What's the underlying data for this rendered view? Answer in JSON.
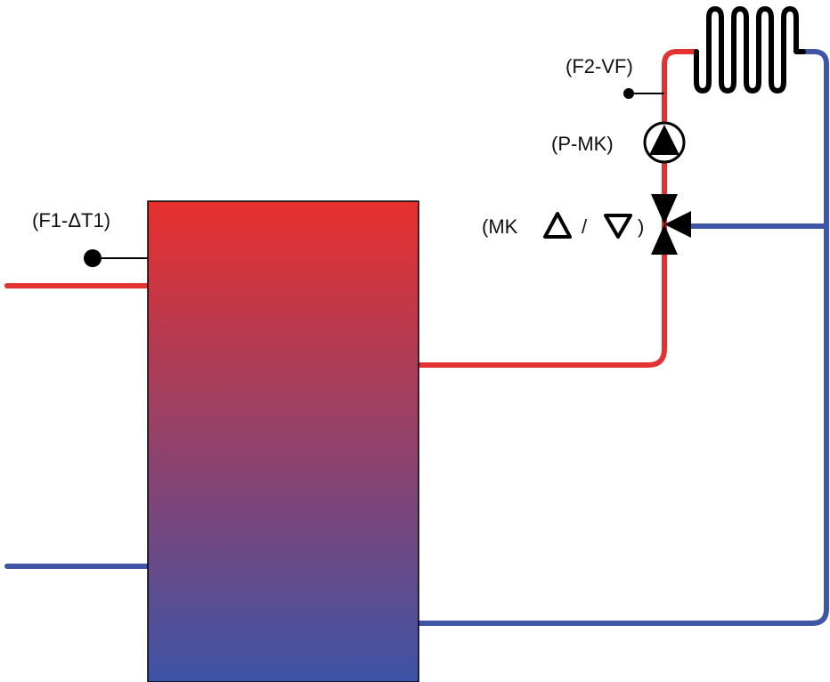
{
  "labels": {
    "sensor_f1": "(F1-ΔT1)",
    "sensor_f2": "(F2-VF)",
    "pump": "(P-MK)",
    "mixer_prefix": "(MK",
    "mixer_sep": "/",
    "mixer_suffix": ")"
  },
  "colors": {
    "hot": "#e23232",
    "cold": "#3f56a6",
    "tank_top": "#e8302e",
    "tank_bottom": "#3d53a6",
    "symbol": "#000000"
  },
  "icons": [
    "sensor-dot-icon",
    "pump-icon",
    "mixing-valve-icon",
    "radiator-coil-icon",
    "triangle-up-icon",
    "triangle-down-icon"
  ]
}
